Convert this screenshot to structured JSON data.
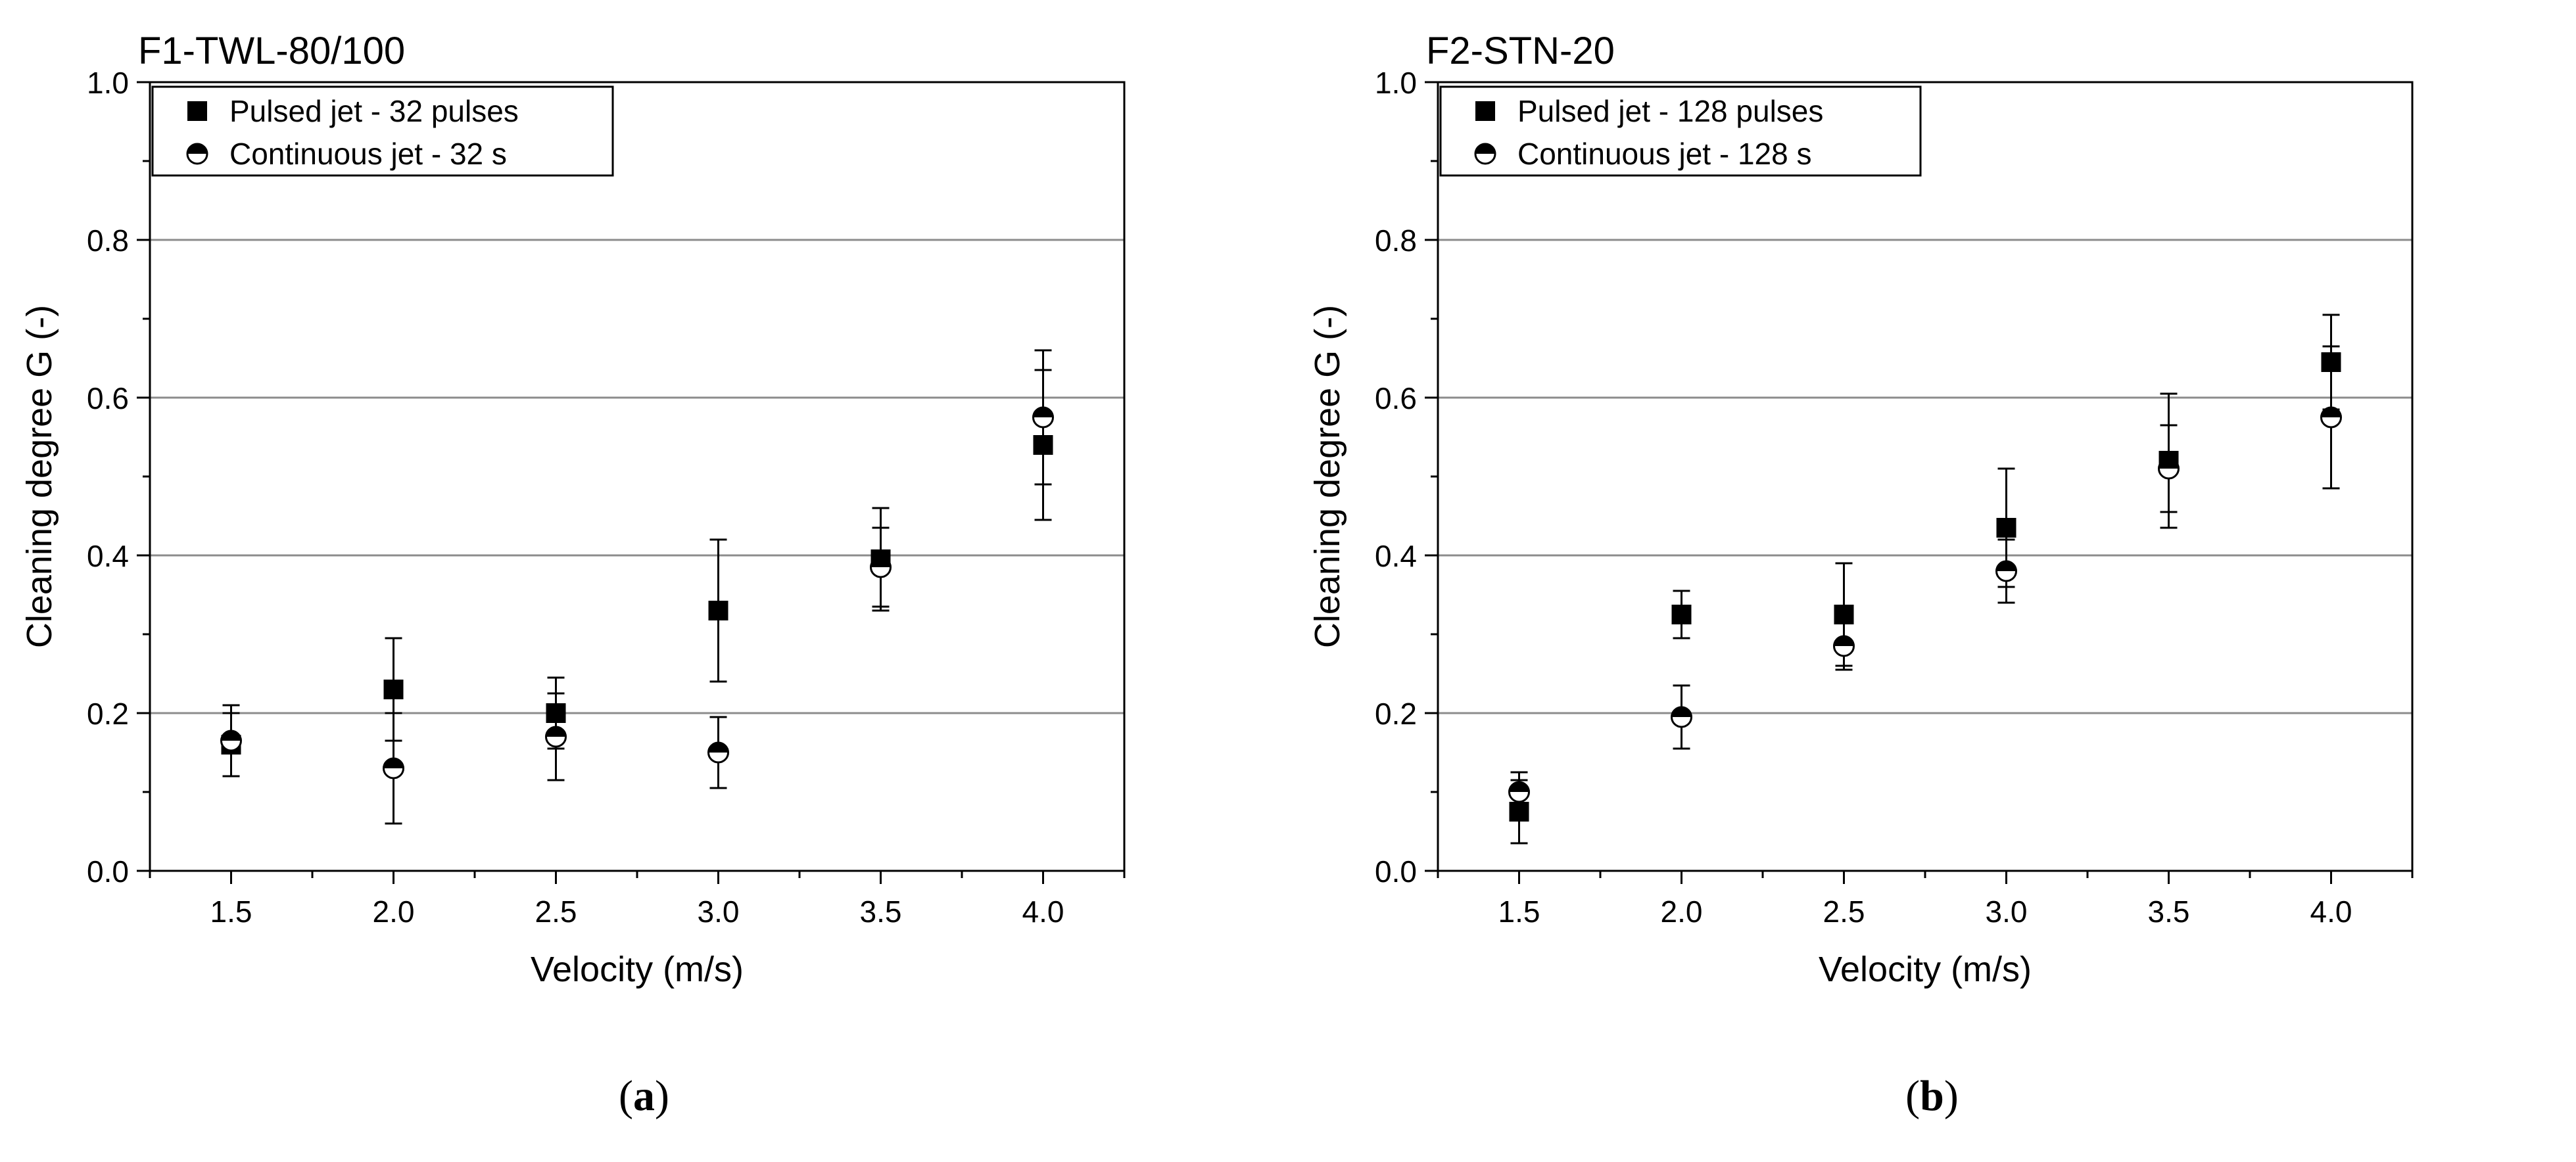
{
  "chart_data": [
    {
      "type": "scatter",
      "title": "F1-TWL-80/100",
      "xlabel": "Velocity (m/s)",
      "ylabel": "Cleaning degree G (-)",
      "xlim": [
        1.25,
        4.25
      ],
      "ylim": [
        0.0,
        1.0
      ],
      "xticks": [
        "1.5",
        "2.0",
        "2.5",
        "3.0",
        "3.5",
        "4.0"
      ],
      "yticks": [
        "0.0",
        "0.2",
        "0.4",
        "0.6",
        "0.8",
        "1.0"
      ],
      "grid": "horizontal",
      "legend_position": "top-left",
      "caption_label": "a",
      "series": [
        {
          "name": "Pulsed jet - 32 pulses",
          "marker": "filled-square",
          "x": [
            1.5,
            2.0,
            2.5,
            3.0,
            3.5,
            4.0
          ],
          "y": [
            0.16,
            0.23,
            0.2,
            0.33,
            0.395,
            0.54
          ],
          "error": [
            0.04,
            0.065,
            0.045,
            0.09,
            0.065,
            0.095
          ]
        },
        {
          "name": "Continuous jet - 32 s",
          "marker": "half-filled-circle",
          "x": [
            1.5,
            2.0,
            2.5,
            3.0,
            3.5,
            4.0
          ],
          "y": [
            0.165,
            0.13,
            0.17,
            0.15,
            0.385,
            0.575
          ],
          "error": [
            0.045,
            0.07,
            0.055,
            0.045,
            0.05,
            0.085
          ]
        }
      ]
    },
    {
      "type": "scatter",
      "title": "F2-STN-20",
      "xlabel": "Velocity (m/s)",
      "ylabel": "Cleaning degree G (-)",
      "xlim": [
        1.25,
        4.25
      ],
      "ylim": [
        0.0,
        1.0
      ],
      "xticks": [
        "1.5",
        "2.0",
        "2.5",
        "3.0",
        "3.5",
        "4.0"
      ],
      "yticks": [
        "0.0",
        "0.2",
        "0.4",
        "0.6",
        "0.8",
        "1.0"
      ],
      "grid": "horizontal",
      "legend_position": "top-left",
      "caption_label": "b",
      "series": [
        {
          "name": "Pulsed jet - 128 pulses",
          "marker": "filled-square",
          "x": [
            1.5,
            2.0,
            2.5,
            3.0,
            3.5,
            4.0
          ],
          "y": [
            0.075,
            0.325,
            0.325,
            0.435,
            0.52,
            0.645
          ],
          "error": [
            0.04,
            0.03,
            0.065,
            0.075,
            0.085,
            0.06
          ]
        },
        {
          "name": "Continuous jet - 128 s",
          "marker": "half-filled-circle",
          "x": [
            1.5,
            2.0,
            2.5,
            3.0,
            3.5,
            4.0
          ],
          "y": [
            0.1,
            0.195,
            0.285,
            0.38,
            0.51,
            0.575
          ],
          "error": [
            0.025,
            0.04,
            0.03,
            0.04,
            0.055,
            0.09
          ]
        }
      ]
    }
  ]
}
